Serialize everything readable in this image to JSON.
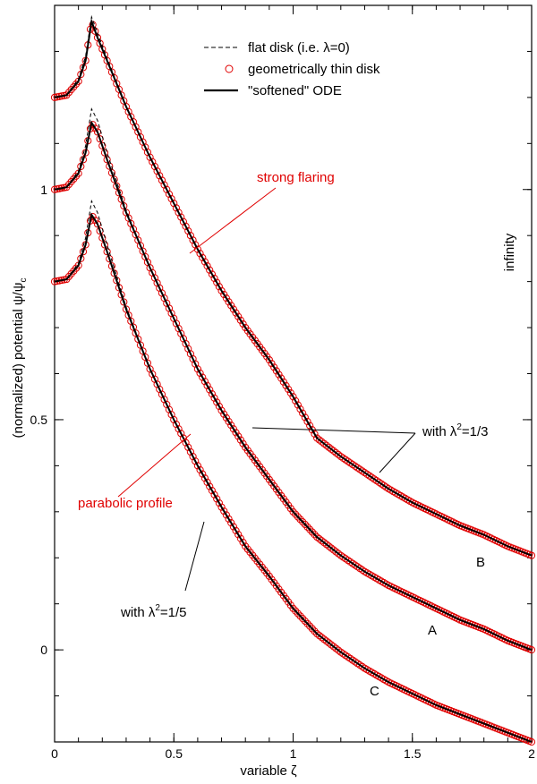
{
  "chart_data": {
    "type": "line",
    "title": "",
    "xlabel": "variable ζ",
    "ylabel": "(normalized) potential ψ/ψ",
    "ylabel_sub": "c",
    "xlim": [
      0,
      2
    ],
    "ylim": [
      -0.2,
      1.4
    ],
    "x_ticks": [
      {
        "value": 0,
        "label": "0"
      },
      {
        "value": 0.5,
        "label": "0.5"
      },
      {
        "value": 1,
        "label": "1"
      },
      {
        "value": 1.5,
        "label": "1.5"
      },
      {
        "value": 2,
        "label": "2"
      }
    ],
    "y_ticks": [
      {
        "value": 0,
        "label": "0"
      },
      {
        "value": 0.5,
        "label": "0.5"
      },
      {
        "value": 1,
        "label": "1"
      }
    ],
    "x_minor_step": 0.1,
    "y_minor_step": 0.1,
    "right_axis_label": "infinity",
    "legend": [
      {
        "label": "flat disk (i.e. λ=0)",
        "style": "dashed"
      },
      {
        "label": "geometrically thin disk",
        "style": "circles"
      },
      {
        "label": "\"softened\" ODE",
        "style": "solid"
      }
    ],
    "annotations": {
      "strong_flaring": "strong flaring",
      "parabolic_profile": "parabolic profile",
      "lambda13_prefix": "with λ",
      "lambda13_sup": "2",
      "lambda13_suffix": "=1/3",
      "lambda15_prefix": "with λ",
      "lambda15_sup": "2",
      "lambda15_suffix": "=1/5"
    },
    "series": [
      {
        "name": "B",
        "label": "B",
        "x": [
          0.0,
          0.05,
          0.1,
          0.13,
          0.155,
          0.18,
          0.22,
          0.3,
          0.4,
          0.5,
          0.6,
          0.7,
          0.8,
          0.9,
          1.0,
          1.1,
          1.2,
          1.3,
          1.4,
          1.5,
          1.6,
          1.7,
          1.8,
          1.9,
          2.0
        ],
        "y_ode": [
          1.2,
          1.205,
          1.235,
          1.28,
          1.365,
          1.33,
          1.28,
          1.18,
          1.07,
          0.97,
          0.87,
          0.78,
          0.7,
          0.63,
          0.55,
          0.46,
          0.42,
          0.385,
          0.35,
          0.32,
          0.295,
          0.27,
          0.25,
          0.225,
          0.205
        ],
        "y_flat": [
          1.2,
          1.205,
          1.24,
          1.29,
          1.375,
          1.34,
          1.285,
          1.182,
          1.07,
          0.97,
          0.87,
          0.78,
          0.7,
          0.63,
          0.55,
          0.46,
          0.42,
          0.385,
          0.35,
          0.32,
          0.295,
          0.27,
          0.25,
          0.225,
          0.205
        ]
      },
      {
        "name": "A",
        "label": "A",
        "x": [
          0.0,
          0.05,
          0.1,
          0.13,
          0.155,
          0.18,
          0.22,
          0.3,
          0.4,
          0.5,
          0.6,
          0.7,
          0.8,
          0.9,
          1.0,
          1.1,
          1.2,
          1.3,
          1.4,
          1.5,
          1.6,
          1.7,
          1.8,
          1.9,
          2.0
        ],
        "y_ode": [
          1.0,
          1.005,
          1.035,
          1.08,
          1.145,
          1.125,
          1.065,
          0.95,
          0.83,
          0.72,
          0.61,
          0.52,
          0.44,
          0.37,
          0.3,
          0.245,
          0.205,
          0.17,
          0.14,
          0.115,
          0.09,
          0.065,
          0.045,
          0.02,
          0.0
        ],
        "y_flat": [
          1.0,
          1.005,
          1.04,
          1.095,
          1.175,
          1.15,
          1.08,
          0.955,
          0.83,
          0.72,
          0.61,
          0.52,
          0.44,
          0.37,
          0.3,
          0.245,
          0.205,
          0.17,
          0.14,
          0.115,
          0.09,
          0.065,
          0.045,
          0.02,
          0.0
        ]
      },
      {
        "name": "C",
        "label": "C",
        "x": [
          0.0,
          0.05,
          0.1,
          0.13,
          0.155,
          0.18,
          0.22,
          0.3,
          0.4,
          0.5,
          0.6,
          0.7,
          0.8,
          0.9,
          1.0,
          1.1,
          1.2,
          1.3,
          1.4,
          1.5,
          1.6,
          1.7,
          1.8,
          1.9,
          2.0
        ],
        "y_ode": [
          0.8,
          0.805,
          0.835,
          0.88,
          0.945,
          0.925,
          0.865,
          0.74,
          0.61,
          0.5,
          0.4,
          0.31,
          0.225,
          0.16,
          0.09,
          0.035,
          -0.005,
          -0.04,
          -0.07,
          -0.095,
          -0.12,
          -0.14,
          -0.16,
          -0.18,
          -0.2
        ],
        "y_flat": [
          0.8,
          0.805,
          0.84,
          0.895,
          0.975,
          0.95,
          0.88,
          0.745,
          0.61,
          0.5,
          0.4,
          0.31,
          0.225,
          0.16,
          0.09,
          0.035,
          -0.005,
          -0.04,
          -0.07,
          -0.095,
          -0.12,
          -0.14,
          -0.16,
          -0.18,
          -0.2
        ]
      }
    ],
    "colors": {
      "circles": "#e00000",
      "lines": "#000000",
      "annotation_red": "#e00000"
    }
  }
}
